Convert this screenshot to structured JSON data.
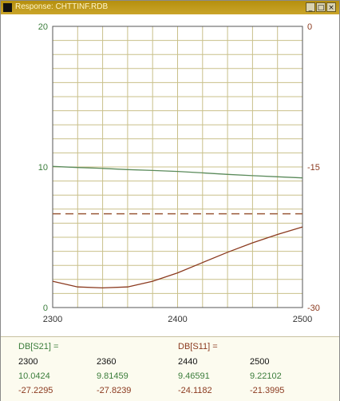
{
  "window": {
    "title": "Response: CHTTINF.RDB",
    "controls": [
      "_",
      "□",
      "×"
    ]
  },
  "colors": {
    "s21": "#5a8a5a",
    "s11": "#8b3a1f",
    "ref_line": "#9b5a3a",
    "grid": "#c9c08a",
    "left_axis": "#3b7d3b",
    "right_axis": "#8b3a1f"
  },
  "chart_data": {
    "type": "line",
    "x": [
      2300,
      2320,
      2340,
      2360,
      2380,
      2400,
      2420,
      2440,
      2460,
      2480,
      2500
    ],
    "xlim": [
      2300,
      2500
    ],
    "x_ticks": [
      "2300",
      "2400",
      "2500"
    ],
    "y_left": {
      "lim": [
        0,
        20
      ],
      "ticks": [
        "20",
        "10",
        "0"
      ]
    },
    "y_right": {
      "lim": [
        -30,
        0
      ],
      "ticks": [
        "0",
        "-15",
        "-30"
      ]
    },
    "grid": true,
    "series": [
      {
        "name": "DB[S21]",
        "axis": "left",
        "values": [
          10.04,
          9.96,
          9.9,
          9.81,
          9.75,
          9.68,
          9.58,
          9.47,
          9.38,
          9.3,
          9.22
        ]
      },
      {
        "name": "DB[S11]",
        "axis": "right",
        "values": [
          -27.2,
          -27.8,
          -27.9,
          -27.8,
          -27.2,
          -26.3,
          -25.2,
          -24.1,
          -23.1,
          -22.2,
          -21.4
        ]
      }
    ],
    "reference_line": {
      "axis": "right",
      "value": -20
    }
  },
  "readout": {
    "s21_label": "DB[S21] =",
    "s11_label": "DB[S11] =",
    "freqs": [
      "2300",
      "2360",
      "2440",
      "2500"
    ],
    "s21_values": [
      "10.0424",
      "9.81459",
      "9.46591",
      "9.22102"
    ],
    "s11_values": [
      "-27.2295",
      "-27.8239",
      "-24.1182",
      "-21.3995"
    ]
  }
}
